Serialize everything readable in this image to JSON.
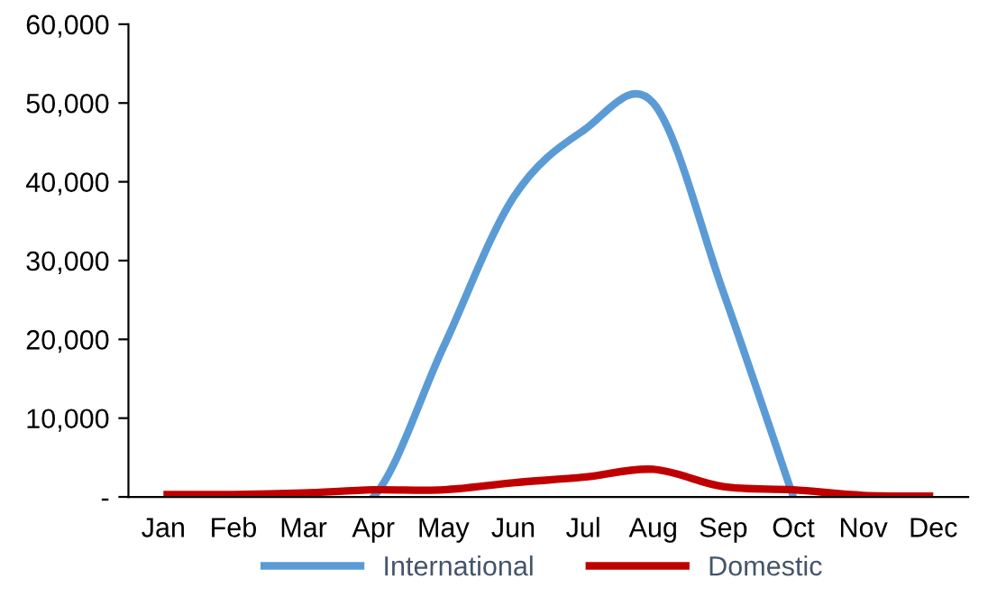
{
  "chart_data": {
    "type": "line",
    "categories": [
      "Jan",
      "Feb",
      "Mar",
      "Apr",
      "May",
      "Jun",
      "Jul",
      "Aug",
      "Sep",
      "Oct",
      "Nov",
      "Dec"
    ],
    "series": [
      {
        "name": "International",
        "color": "#5b9bd5",
        "values": [
          null,
          null,
          0,
          0,
          19000,
          38000,
          46500,
          50000,
          26000,
          0,
          null,
          null
        ]
      },
      {
        "name": "Domestic",
        "color": "#c00000",
        "values": [
          300,
          300,
          500,
          900,
          900,
          1800,
          2500,
          3500,
          1300,
          900,
          200,
          100
        ]
      }
    ],
    "ylim": [
      0,
      60000
    ],
    "yticks": [
      {
        "value": 0,
        "label": "-"
      },
      {
        "value": 10000,
        "label": "10,000"
      },
      {
        "value": 20000,
        "label": "20,000"
      },
      {
        "value": 30000,
        "label": "30,000"
      },
      {
        "value": 40000,
        "label": "40,000"
      },
      {
        "value": 50000,
        "label": "50,000"
      },
      {
        "value": 60000,
        "label": "60,000"
      }
    ],
    "grid": false,
    "legend": "bottom",
    "marker": "none",
    "line_style": "solid"
  }
}
